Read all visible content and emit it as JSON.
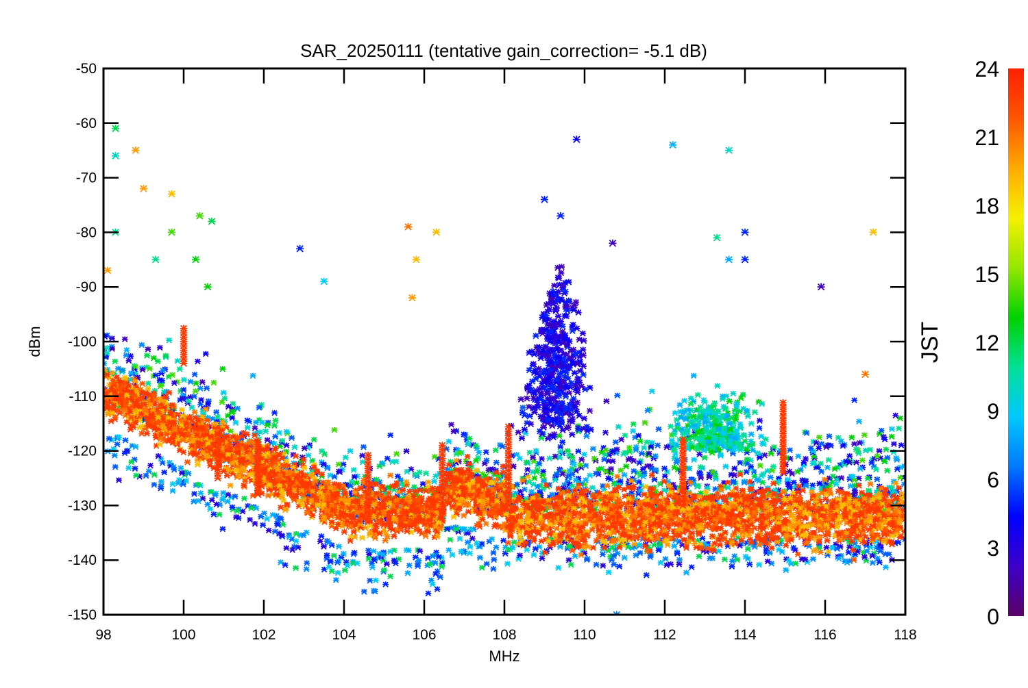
{
  "chart_data": {
    "type": "scatter",
    "title": "SAR_20250111 (tentative gain_correction= -5.1 dB)",
    "xlabel": "MHz",
    "ylabel": "dBm",
    "xlim": [
      98,
      118
    ],
    "ylim": [
      -150,
      -50
    ],
    "x_ticks": [
      "98",
      "100",
      "102",
      "104",
      "106",
      "108",
      "110",
      "112",
      "114",
      "116",
      "118"
    ],
    "y_ticks": [
      "-50",
      "-60",
      "-70",
      "-80",
      "-90",
      "-100",
      "-110",
      "-120",
      "-130",
      "-140",
      "-150"
    ],
    "grid": false,
    "legend": "none",
    "marker": "asterisk",
    "colorbar": {
      "label": "JST",
      "range": [
        0,
        24
      ],
      "ticks": [
        "0",
        "3",
        "6",
        "9",
        "12",
        "15",
        "18",
        "21",
        "24"
      ],
      "colormap": "rainbow",
      "stops": [
        "#5a0066",
        "#3d00c8",
        "#0000ff",
        "#0078ff",
        "#00c8ff",
        "#00e096",
        "#00d200",
        "#96e600",
        "#f5f000",
        "#ffaa00",
        "#ff5500",
        "#ff2000"
      ]
    },
    "noise_floor_description": "Baseline rises from about -113 dBm at 98 MHz down to about -135 dBm near 104-106 MHz, then a dense band around -128 to -138 dBm from 108 to 118 MHz.",
    "highlight_points": [
      {
        "x": 98.3,
        "y": -61,
        "jst": 12
      },
      {
        "x": 98.3,
        "y": -66,
        "jst": 10
      },
      {
        "x": 98.3,
        "y": -80,
        "jst": 11
      },
      {
        "x": 98.8,
        "y": -65,
        "jst": 20
      },
      {
        "x": 99.0,
        "y": -72,
        "jst": 20
      },
      {
        "x": 98.1,
        "y": -87,
        "jst": 20
      },
      {
        "x": 99.3,
        "y": -85,
        "jst": 11
      },
      {
        "x": 99.7,
        "y": -73,
        "jst": 19
      },
      {
        "x": 99.7,
        "y": -80,
        "jst": 14
      },
      {
        "x": 100.4,
        "y": -77,
        "jst": 14
      },
      {
        "x": 100.7,
        "y": -78,
        "jst": 12
      },
      {
        "x": 100.3,
        "y": -85,
        "jst": 13
      },
      {
        "x": 100.6,
        "y": -90,
        "jst": 13
      },
      {
        "x": 102.9,
        "y": -83,
        "jst": 5
      },
      {
        "x": 103.5,
        "y": -89,
        "jst": 9
      },
      {
        "x": 105.6,
        "y": -79,
        "jst": 21
      },
      {
        "x": 106.3,
        "y": -80,
        "jst": 19
      },
      {
        "x": 105.7,
        "y": -92,
        "jst": 20
      },
      {
        "x": 105.8,
        "y": -85,
        "jst": 19
      },
      {
        "x": 109.8,
        "y": -63,
        "jst": 4
      },
      {
        "x": 109.0,
        "y": -74,
        "jst": 5
      },
      {
        "x": 109.4,
        "y": -77,
        "jst": 5
      },
      {
        "x": 110.7,
        "y": -82,
        "jst": 2
      },
      {
        "x": 112.2,
        "y": -64,
        "jst": 8
      },
      {
        "x": 113.6,
        "y": -65,
        "jst": 10
      },
      {
        "x": 113.3,
        "y": -81,
        "jst": 11
      },
      {
        "x": 113.6,
        "y": -85,
        "jst": 8
      },
      {
        "x": 114.0,
        "y": -80,
        "jst": 5
      },
      {
        "x": 114.0,
        "y": -85,
        "jst": 5
      },
      {
        "x": 117.2,
        "y": -80,
        "jst": 19
      },
      {
        "x": 115.9,
        "y": -90,
        "jst": 2
      },
      {
        "x": 117.0,
        "y": -106,
        "jst": 21
      },
      {
        "x": 110.8,
        "y": -150,
        "jst": 7
      }
    ],
    "spike_markers": [
      {
        "x": 100.0,
        "y_top": -97,
        "y_bottom": -104
      },
      {
        "x": 100.85,
        "y_top": -117,
        "y_bottom": -125
      },
      {
        "x": 101.85,
        "y_top": -118,
        "y_bottom": -128
      },
      {
        "x": 104.6,
        "y_top": -120,
        "y_bottom": -132
      },
      {
        "x": 106.45,
        "y_top": -119,
        "y_bottom": -131
      },
      {
        "x": 108.1,
        "y_top": -115,
        "y_bottom": -130
      },
      {
        "x": 112.45,
        "y_top": -118,
        "y_bottom": -130
      },
      {
        "x": 114.95,
        "y_top": -111,
        "y_bottom": -124
      }
    ]
  }
}
